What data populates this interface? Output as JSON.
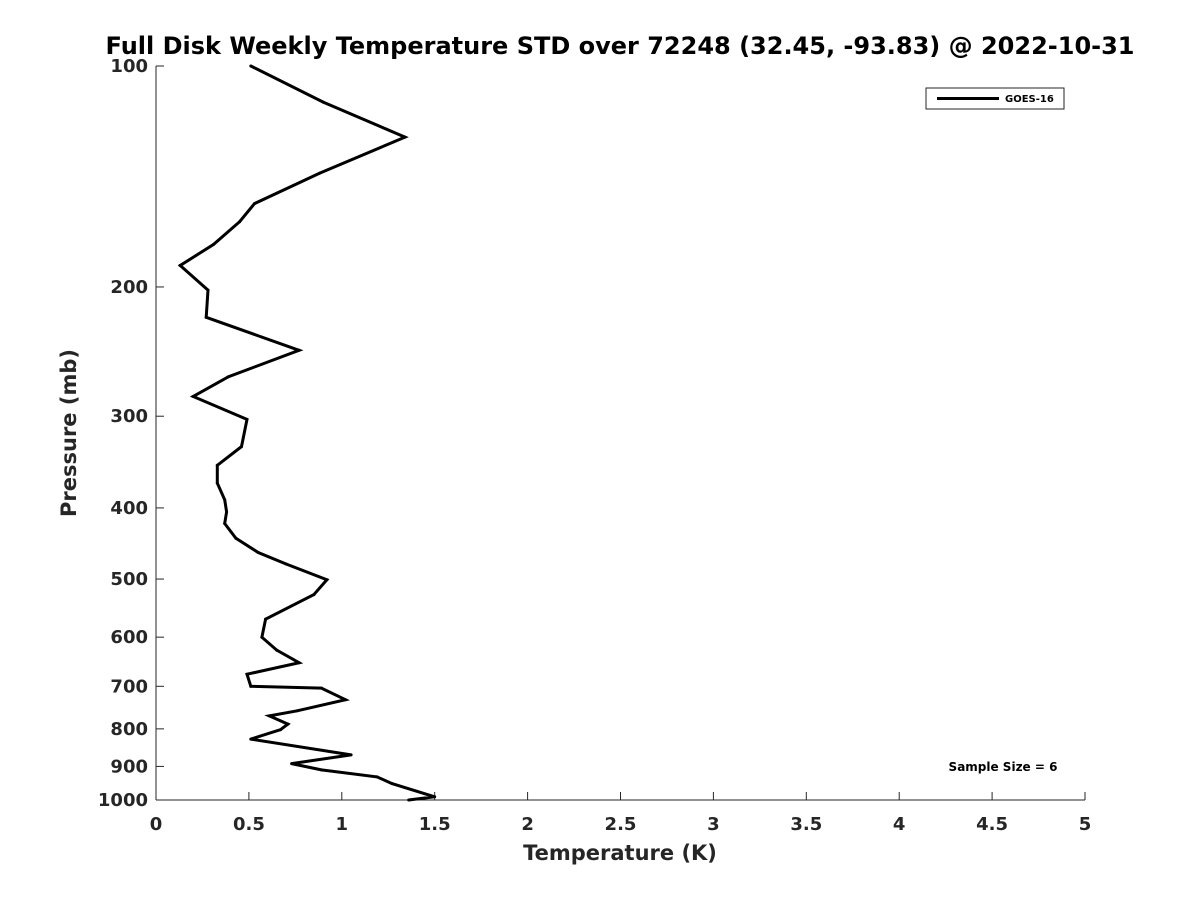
{
  "chart_data": {
    "type": "line",
    "title": "Full Disk Weekly Temperature STD over 72248 (32.45, -93.83) @ 2022-10-31",
    "xlabel": "Temperature (K)",
    "ylabel": "Pressure (mb)",
    "xlim": [
      0,
      5
    ],
    "ylim": [
      100,
      1000
    ],
    "y_scale": "log",
    "y_reversed": true,
    "x_ticks": [
      "0",
      "0.5",
      "1",
      "1.5",
      "2",
      "2.5",
      "3",
      "3.5",
      "4",
      "4.5",
      "5"
    ],
    "y_ticks": [
      "100",
      "200",
      "300",
      "400",
      "500",
      "600",
      "700",
      "800",
      "900",
      "1000"
    ],
    "grid": false,
    "legend_position": "top-right",
    "annotation": "Sample Size = 6",
    "series": [
      {
        "name": "GOES-16",
        "color": "#000000",
        "points": [
          [
            0.51,
            100
          ],
          [
            0.9,
            112
          ],
          [
            1.34,
            125
          ],
          [
            0.88,
            140
          ],
          [
            0.53,
            154
          ],
          [
            0.45,
            163
          ],
          [
            0.31,
            175
          ],
          [
            0.13,
            187
          ],
          [
            0.28,
            202
          ],
          [
            0.27,
            220
          ],
          [
            0.77,
            244
          ],
          [
            0.39,
            265
          ],
          [
            0.2,
            282
          ],
          [
            0.49,
            303
          ],
          [
            0.46,
            330
          ],
          [
            0.33,
            350
          ],
          [
            0.33,
            370
          ],
          [
            0.37,
            390
          ],
          [
            0.38,
            405
          ],
          [
            0.37,
            420
          ],
          [
            0.43,
            440
          ],
          [
            0.55,
            460
          ],
          [
            0.7,
            477
          ],
          [
            0.92,
            501
          ],
          [
            0.85,
            525
          ],
          [
            0.59,
            567
          ],
          [
            0.57,
            600
          ],
          [
            0.65,
            625
          ],
          [
            0.77,
            650
          ],
          [
            0.49,
            674
          ],
          [
            0.51,
            700
          ],
          [
            0.89,
            704
          ],
          [
            1.02,
            730
          ],
          [
            0.76,
            756
          ],
          [
            0.61,
            768
          ],
          [
            0.71,
            788
          ],
          [
            0.67,
            802
          ],
          [
            0.51,
            826
          ],
          [
            1.05,
            868
          ],
          [
            0.73,
            892
          ],
          [
            0.89,
            910
          ],
          [
            1.19,
            930
          ],
          [
            1.27,
            950
          ],
          [
            1.5,
            990
          ],
          [
            1.36,
            1000
          ]
        ]
      }
    ]
  }
}
